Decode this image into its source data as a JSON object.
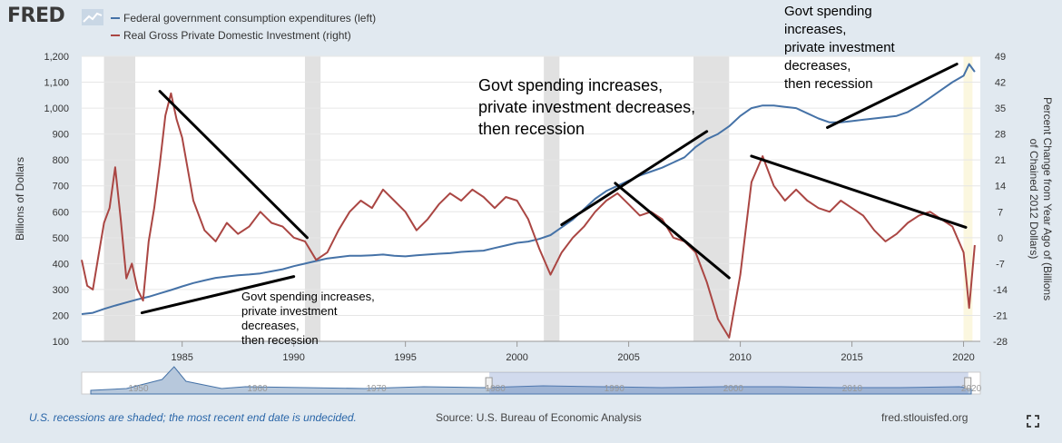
{
  "header": {
    "logo": "FRED",
    "legend": [
      {
        "label": "Federal government consumption expenditures (left)",
        "color": "#4572a7"
      },
      {
        "label": "Real Gross Private Domestic Investment (right)",
        "color": "#aa4643"
      }
    ]
  },
  "footer": {
    "recession_note": "U.S. recessions are shaded; the most recent end date is undecided.",
    "source": "Source: U.S. Bureau of Economic Analysis",
    "site": "fred.stlouisfed.org"
  },
  "chart_data": {
    "type": "line",
    "ylabel_left": "Billions of Dollars",
    "ylabel_right": "Percent Change from Year Ago of (Billions of Chained 2012 Dollars)",
    "xlim": [
      1980.5,
      2020.75
    ],
    "ylim_left": [
      100,
      1200
    ],
    "ylim_right": [
      -28,
      49
    ],
    "x_ticks": [
      1985,
      1990,
      1995,
      2000,
      2005,
      2010,
      2015,
      2020
    ],
    "y_ticks_left": [
      "100",
      "200",
      "300",
      "400",
      "500",
      "600",
      "700",
      "800",
      "900",
      "1,000",
      "1,100",
      "1,200"
    ],
    "y_ticks_right": [
      "-28",
      "-21",
      "-14",
      "-7",
      "0",
      "7",
      "14",
      "21",
      "28",
      "35",
      "42",
      "49"
    ],
    "recessions": [
      [
        1981.5,
        1982.9
      ],
      [
        1990.5,
        1991.2
      ],
      [
        2001.2,
        2001.9
      ],
      [
        2007.9,
        2009.5
      ],
      [
        2020.0,
        2020.4
      ]
    ],
    "series": [
      {
        "name": "Federal government consumption expenditures (left)",
        "color": "#4572a7",
        "points": [
          [
            1980.5,
            205
          ],
          [
            1981,
            210
          ],
          [
            1981.5,
            225
          ],
          [
            1982,
            238
          ],
          [
            1982.5,
            250
          ],
          [
            1983,
            262
          ],
          [
            1983.5,
            272
          ],
          [
            1984,
            285
          ],
          [
            1984.5,
            298
          ],
          [
            1985,
            312
          ],
          [
            1985.5,
            325
          ],
          [
            1986,
            335
          ],
          [
            1986.5,
            345
          ],
          [
            1987,
            350
          ],
          [
            1987.5,
            355
          ],
          [
            1988,
            358
          ],
          [
            1988.5,
            362
          ],
          [
            1989,
            370
          ],
          [
            1989.5,
            378
          ],
          [
            1990,
            390
          ],
          [
            1990.5,
            400
          ],
          [
            1991,
            410
          ],
          [
            1991.5,
            420
          ],
          [
            1992,
            425
          ],
          [
            1992.5,
            430
          ],
          [
            1993,
            430
          ],
          [
            1993.5,
            432
          ],
          [
            1994,
            435
          ],
          [
            1994.5,
            430
          ],
          [
            1995,
            428
          ],
          [
            1995.5,
            432
          ],
          [
            1996,
            435
          ],
          [
            1996.5,
            438
          ],
          [
            1997,
            440
          ],
          [
            1997.5,
            445
          ],
          [
            1998,
            448
          ],
          [
            1998.5,
            450
          ],
          [
            1999,
            460
          ],
          [
            1999.5,
            470
          ],
          [
            2000,
            480
          ],
          [
            2000.5,
            485
          ],
          [
            2001,
            495
          ],
          [
            2001.5,
            510
          ],
          [
            2002,
            540
          ],
          [
            2002.5,
            570
          ],
          [
            2003,
            610
          ],
          [
            2003.5,
            650
          ],
          [
            2004,
            680
          ],
          [
            2004.5,
            700
          ],
          [
            2005,
            720
          ],
          [
            2005.5,
            740
          ],
          [
            2006,
            755
          ],
          [
            2006.5,
            770
          ],
          [
            2007,
            790
          ],
          [
            2007.5,
            810
          ],
          [
            2008,
            850
          ],
          [
            2008.5,
            880
          ],
          [
            2009,
            900
          ],
          [
            2009.5,
            930
          ],
          [
            2010,
            970
          ],
          [
            2010.5,
            1000
          ],
          [
            2011,
            1010
          ],
          [
            2011.5,
            1010
          ],
          [
            2012,
            1005
          ],
          [
            2012.5,
            1000
          ],
          [
            2013,
            980
          ],
          [
            2013.5,
            960
          ],
          [
            2014,
            945
          ],
          [
            2014.5,
            945
          ],
          [
            2015,
            950
          ],
          [
            2015.5,
            955
          ],
          [
            2016,
            960
          ],
          [
            2016.5,
            965
          ],
          [
            2017,
            970
          ],
          [
            2017.5,
            985
          ],
          [
            2018,
            1010
          ],
          [
            2018.5,
            1040
          ],
          [
            2019,
            1070
          ],
          [
            2019.5,
            1100
          ],
          [
            2020,
            1125
          ],
          [
            2020.25,
            1170
          ],
          [
            2020.5,
            1140
          ]
        ]
      },
      {
        "name": "Real Gross Private Domestic Investment (right)",
        "color": "#aa4643",
        "points": [
          [
            1980.5,
            -6
          ],
          [
            1980.75,
            -13
          ],
          [
            1981,
            -14
          ],
          [
            1981.25,
            -5
          ],
          [
            1981.5,
            4
          ],
          [
            1981.75,
            8
          ],
          [
            1982,
            19
          ],
          [
            1982.25,
            5
          ],
          [
            1982.5,
            -11
          ],
          [
            1982.75,
            -7
          ],
          [
            1983,
            -14
          ],
          [
            1983.25,
            -17
          ],
          [
            1983.5,
            -1
          ],
          [
            1983.75,
            8
          ],
          [
            1984,
            20
          ],
          [
            1984.25,
            33
          ],
          [
            1984.5,
            39
          ],
          [
            1984.75,
            32
          ],
          [
            1985,
            27
          ],
          [
            1985.5,
            10
          ],
          [
            1986,
            2
          ],
          [
            1986.5,
            -1
          ],
          [
            1987,
            4
          ],
          [
            1987.5,
            1
          ],
          [
            1988,
            3
          ],
          [
            1988.5,
            7
          ],
          [
            1989,
            4
          ],
          [
            1989.5,
            3
          ],
          [
            1990,
            0
          ],
          [
            1990.5,
            -1
          ],
          [
            1991,
            -6
          ],
          [
            1991.5,
            -4
          ],
          [
            1992,
            2
          ],
          [
            1992.5,
            7
          ],
          [
            1993,
            10
          ],
          [
            1993.5,
            8
          ],
          [
            1994,
            13
          ],
          [
            1994.5,
            10
          ],
          [
            1995,
            7
          ],
          [
            1995.5,
            2
          ],
          [
            1996,
            5
          ],
          [
            1996.5,
            9
          ],
          [
            1997,
            12
          ],
          [
            1997.5,
            10
          ],
          [
            1998,
            13
          ],
          [
            1998.5,
            11
          ],
          [
            1999,
            8
          ],
          [
            1999.5,
            11
          ],
          [
            2000,
            10
          ],
          [
            2000.5,
            5
          ],
          [
            2001,
            -3
          ],
          [
            2001.5,
            -10
          ],
          [
            2002,
            -4
          ],
          [
            2002.5,
            0
          ],
          [
            2003,
            3
          ],
          [
            2003.5,
            7
          ],
          [
            2004,
            10
          ],
          [
            2004.5,
            12
          ],
          [
            2005,
            9
          ],
          [
            2005.5,
            6
          ],
          [
            2006,
            7
          ],
          [
            2006.5,
            5
          ],
          [
            2007,
            0
          ],
          [
            2007.5,
            -1
          ],
          [
            2008,
            -4
          ],
          [
            2008.5,
            -12
          ],
          [
            2009,
            -22
          ],
          [
            2009.5,
            -27
          ],
          [
            2010,
            -10
          ],
          [
            2010.5,
            15
          ],
          [
            2011,
            22
          ],
          [
            2011.5,
            14
          ],
          [
            2012,
            10
          ],
          [
            2012.5,
            13
          ],
          [
            2013,
            10
          ],
          [
            2013.5,
            8
          ],
          [
            2014,
            7
          ],
          [
            2014.5,
            10
          ],
          [
            2015,
            8
          ],
          [
            2015.5,
            6
          ],
          [
            2016,
            2
          ],
          [
            2016.5,
            -1
          ],
          [
            2017,
            1
          ],
          [
            2017.5,
            4
          ],
          [
            2018,
            6
          ],
          [
            2018.5,
            7
          ],
          [
            2019,
            5
          ],
          [
            2019.5,
            3
          ],
          [
            2020,
            -4
          ],
          [
            2020.25,
            -19
          ],
          [
            2020.5,
            -2
          ]
        ]
      }
    ],
    "trend_lines": [
      [
        [
          1984.0,
          1065
        ],
        [
          1990.6,
          500
        ]
      ],
      [
        [
          1983.2,
          210
        ],
        [
          1990.0,
          350
        ]
      ],
      [
        [
          2002.0,
          550
        ],
        [
          2008.5,
          910
        ]
      ],
      [
        [
          2004.4,
          710
        ],
        [
          2009.5,
          345
        ]
      ],
      [
        [
          2013.9,
          925
        ],
        [
          2019.7,
          1170
        ]
      ],
      [
        [
          2010.5,
          815
        ],
        [
          2020.1,
          540
        ]
      ]
    ],
    "annotations": [
      {
        "lines": [
          "Govt spending increases,",
          "private investment",
          "decreases,",
          "then recession"
        ]
      },
      {
        "lines": [
          "Govt spending increases,",
          "private investment decreases,",
          "then recession"
        ]
      },
      {
        "lines": [
          "Govt spending",
          "increases,",
          "private investment",
          "decreases,",
          "then recession"
        ]
      }
    ],
    "navigator": {
      "x_labels": [
        "1950",
        "1960",
        "1970",
        "1980",
        "1990",
        "2000",
        "2010",
        "2020"
      ]
    }
  }
}
